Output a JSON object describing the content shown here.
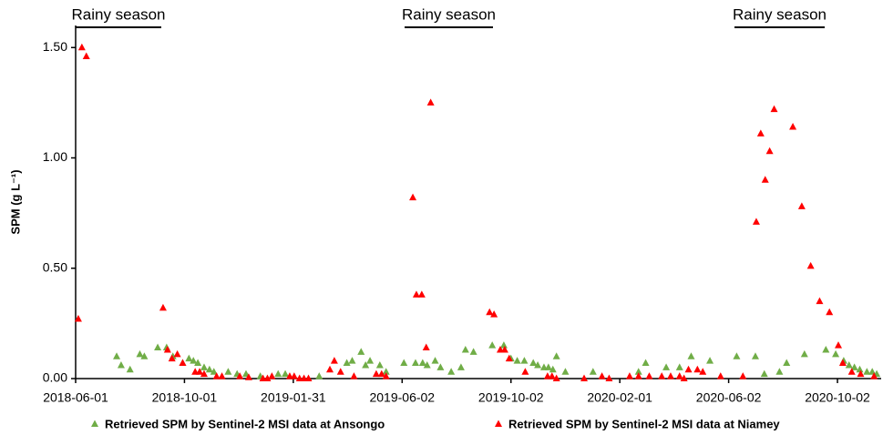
{
  "chart_data": {
    "type": "scatter",
    "y_label": "SPM (g L⁻¹)",
    "annotations": [
      "Rainy season",
      "Rainy season",
      "Rainy season"
    ],
    "xlim": [
      "2018-06-01",
      "2020-11-20"
    ],
    "xticks": [
      "2018-06-01",
      "2018-10-01",
      "2019-01-31",
      "2019-06-02",
      "2019-10-02",
      "2020-02-01",
      "2020-06-02",
      "2020-10-02"
    ],
    "ylim": [
      0,
      1.6
    ],
    "yticks": [
      {
        "value": 0,
        "label": "0.00"
      },
      {
        "value": 0.5,
        "label": "0.50"
      },
      {
        "value": 1,
        "label": "1.00"
      },
      {
        "value": 1.5,
        "label": "1.50"
      }
    ],
    "grid": false,
    "series": [
      {
        "name": "Retrieved SPM by Sentinel-2 MSI data at Ansongo",
        "color": "#70ad47",
        "x": [
          "2018-07-17",
          "2018-07-22",
          "2018-08-01",
          "2018-08-12",
          "2018-08-17",
          "2018-09-01",
          "2018-09-11",
          "2018-09-18",
          "2018-09-29",
          "2018-10-06",
          "2018-10-11",
          "2018-10-16",
          "2018-10-23",
          "2018-10-29",
          "2018-11-03",
          "2018-11-19",
          "2018-11-29",
          "2018-12-09",
          "2018-12-25",
          "2019-01-14",
          "2019-01-22",
          "2019-03-01",
          "2019-04-01",
          "2019-04-07",
          "2019-04-17",
          "2019-04-22",
          "2019-04-27",
          "2019-05-08",
          "2019-05-15",
          "2019-06-04",
          "2019-06-17",
          "2019-06-25",
          "2019-06-30",
          "2019-07-09",
          "2019-07-15",
          "2019-07-27",
          "2019-08-07",
          "2019-08-12",
          "2019-08-21",
          "2019-09-11",
          "2019-09-24",
          "2019-10-02",
          "2019-10-09",
          "2019-10-17",
          "2019-10-27",
          "2019-11-01",
          "2019-11-08",
          "2019-11-13",
          "2019-11-18",
          "2019-11-22",
          "2019-12-02",
          "2020-01-02",
          "2020-02-22",
          "2020-03-01",
          "2020-03-24",
          "2020-04-08",
          "2020-04-21",
          "2020-05-12",
          "2020-06-11",
          "2020-07-02",
          "2020-07-12",
          "2020-07-29",
          "2020-08-06",
          "2020-08-26",
          "2020-09-19",
          "2020-09-30",
          "2020-10-09",
          "2020-10-15",
          "2020-10-21",
          "2020-10-27",
          "2020-11-04",
          "2020-11-10",
          "2020-11-15"
        ],
        "values": [
          0.1,
          0.06,
          0.04,
          0.11,
          0.1,
          0.14,
          0.14,
          0.1,
          0.07,
          0.09,
          0.08,
          0.07,
          0.05,
          0.04,
          0.03,
          0.03,
          0.02,
          0.02,
          0.01,
          0.02,
          0.02,
          0.01,
          0.07,
          0.08,
          0.12,
          0.06,
          0.08,
          0.06,
          0.03,
          0.07,
          0.07,
          0.07,
          0.06,
          0.08,
          0.05,
          0.03,
          0.05,
          0.13,
          0.12,
          0.15,
          0.15,
          0.09,
          0.08,
          0.08,
          0.07,
          0.06,
          0.05,
          0.05,
          0.04,
          0.1,
          0.03,
          0.03,
          0.03,
          0.07,
          0.05,
          0.05,
          0.1,
          0.08,
          0.1,
          0.1,
          0.02,
          0.03,
          0.07,
          0.11,
          0.13,
          0.11,
          0.08,
          0.06,
          0.05,
          0.04,
          0.03,
          0.03,
          0.02
        ]
      },
      {
        "name": "Retrieved SPM by Sentinel-2 MSI data at Niamey",
        "color": "#ff0000",
        "x": [
          "2018-06-04",
          "2018-06-08",
          "2018-06-13",
          "2018-09-07",
          "2018-09-12",
          "2018-09-17",
          "2018-09-23",
          "2018-09-29",
          "2018-10-13",
          "2018-10-18",
          "2018-10-23",
          "2018-11-06",
          "2018-11-12",
          "2018-12-02",
          "2018-12-12",
          "2018-12-28",
          "2019-01-02",
          "2019-01-07",
          "2019-01-27",
          "2019-02-01",
          "2019-02-07",
          "2019-02-12",
          "2019-02-17",
          "2019-03-13",
          "2019-03-18",
          "2019-03-25",
          "2019-04-09",
          "2019-05-04",
          "2019-05-10",
          "2019-05-15",
          "2019-06-14",
          "2019-06-18",
          "2019-06-24",
          "2019-06-29",
          "2019-07-04",
          "2019-09-08",
          "2019-09-13",
          "2019-09-20",
          "2019-09-25",
          "2019-09-30",
          "2019-10-18",
          "2019-11-12",
          "2019-11-17",
          "2019-11-22",
          "2019-12-23",
          "2020-01-12",
          "2020-01-20",
          "2020-02-12",
          "2020-02-22",
          "2020-03-05",
          "2020-03-19",
          "2020-03-29",
          "2020-04-08",
          "2020-04-13",
          "2020-04-18",
          "2020-04-28",
          "2020-05-04",
          "2020-05-24",
          "2020-06-18",
          "2020-07-03",
          "2020-07-08",
          "2020-07-13",
          "2020-07-18",
          "2020-07-23",
          "2020-08-13",
          "2020-08-23",
          "2020-09-02",
          "2020-09-12",
          "2020-09-23",
          "2020-10-03",
          "2020-10-08",
          "2020-10-18",
          "2020-10-28",
          "2020-11-12"
        ],
        "values": [
          0.27,
          1.5,
          1.46,
          0.32,
          0.13,
          0.09,
          0.11,
          0.07,
          0.03,
          0.03,
          0.02,
          0.01,
          0.01,
          0.01,
          0.005,
          0,
          0,
          0.01,
          0.01,
          0.01,
          0,
          0,
          0,
          0.04,
          0.08,
          0.03,
          0.01,
          0.02,
          0.02,
          0.01,
          0.82,
          0.38,
          0.38,
          0.14,
          1.25,
          0.3,
          0.29,
          0.13,
          0.13,
          0.09,
          0.03,
          0.01,
          0.01,
          0,
          0,
          0.01,
          0,
          0.01,
          0.01,
          0.01,
          0.01,
          0.01,
          0.01,
          0,
          0.04,
          0.04,
          0.03,
          0.01,
          0.01,
          0.71,
          1.11,
          0.9,
          1.03,
          1.22,
          1.14,
          0.78,
          0.51,
          0.35,
          0.3,
          0.15,
          0.07,
          0.03,
          0.02,
          0.01
        ]
      }
    ]
  }
}
